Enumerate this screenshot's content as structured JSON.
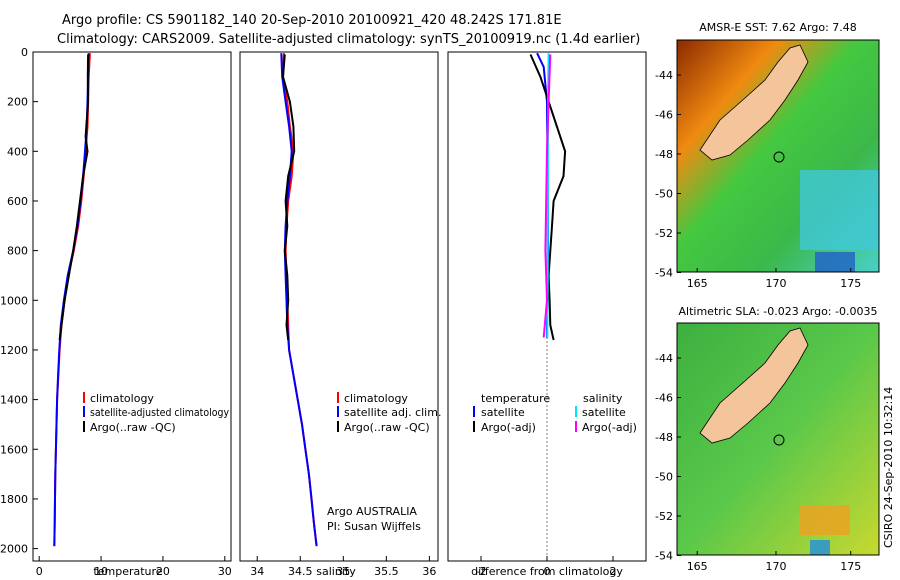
{
  "header": {
    "line1": "Argo profile: CS 5901182_140 20-Sep-2010 20100921_420 48.242S 171.81E",
    "line2": "Climatology: CARS2009. Satellite-adjusted climatology: synTS_20100919.nc (1.4d earlier)"
  },
  "side_stamp": "CSIRO 24-Sep-2010 10:32:14",
  "colors": {
    "climatology": "#ff0000",
    "satellite": "#0000ff",
    "argo": "#000000",
    "salinity_satellite": "#00e5ff",
    "salinity_argo": "#ff00ff",
    "land": "#f4c49a"
  },
  "chart_data": [
    {
      "type": "line",
      "name": "temperature",
      "xlabel": "temperature",
      "xlim": [
        -1,
        31
      ],
      "ylim": [
        0,
        2050
      ],
      "xticks": [
        0,
        10,
        20,
        30
      ],
      "yticks": [
        0,
        200,
        400,
        600,
        800,
        1000,
        1200,
        1400,
        1600,
        1800,
        2000
      ],
      "legend": [
        "climatology",
        "satellite-adjusted climatology",
        "Argo(..raw -QC)"
      ],
      "series": [
        {
          "name": "climatology",
          "color": "#ff0000",
          "points": [
            [
              8.2,
              5
            ],
            [
              8.0,
              100
            ],
            [
              7.9,
              200
            ],
            [
              7.8,
              300
            ],
            [
              7.5,
              400
            ],
            [
              7.2,
              500
            ],
            [
              6.8,
              600
            ],
            [
              6.3,
              700
            ],
            [
              5.6,
              800
            ],
            [
              4.7,
              900
            ],
            [
              4.1,
              1000
            ],
            [
              3.6,
              1100
            ],
            [
              3.3,
              1200
            ],
            [
              3.1,
              1300
            ],
            [
              2.9,
              1400
            ],
            [
              2.8,
              1500
            ],
            [
              2.7,
              1600
            ],
            [
              2.6,
              1700
            ],
            [
              2.55,
              1800
            ],
            [
              2.5,
              1900
            ],
            [
              2.45,
              1990
            ]
          ]
        },
        {
          "name": "satellite",
          "color": "#0000ff",
          "points": [
            [
              8.0,
              5
            ],
            [
              7.9,
              100
            ],
            [
              7.8,
              200
            ],
            [
              7.7,
              300
            ],
            [
              7.4,
              400
            ],
            [
              7.1,
              500
            ],
            [
              6.7,
              600
            ],
            [
              6.2,
              700
            ],
            [
              5.5,
              800
            ],
            [
              4.6,
              900
            ],
            [
              4.0,
              1000
            ],
            [
              3.5,
              1100
            ],
            [
              3.25,
              1200
            ],
            [
              3.05,
              1300
            ],
            [
              2.9,
              1400
            ],
            [
              2.8,
              1500
            ],
            [
              2.7,
              1600
            ],
            [
              2.6,
              1700
            ],
            [
              2.55,
              1800
            ],
            [
              2.5,
              1900
            ],
            [
              2.45,
              1990
            ]
          ]
        },
        {
          "name": "argo",
          "color": "#000000",
          "points": [
            [
              7.9,
              10
            ],
            [
              7.85,
              100
            ],
            [
              7.9,
              200
            ],
            [
              7.5,
              340
            ],
            [
              7.8,
              400
            ],
            [
              7.1,
              500
            ],
            [
              6.6,
              600
            ],
            [
              6.1,
              700
            ],
            [
              5.5,
              800
            ],
            [
              4.8,
              900
            ],
            [
              4.1,
              1000
            ],
            [
              3.6,
              1100
            ],
            [
              3.3,
              1160
            ]
          ]
        }
      ]
    },
    {
      "type": "line",
      "name": "salinity",
      "xlabel": "salinity",
      "xlim": [
        33.8,
        36.1
      ],
      "ylim": [
        0,
        2050
      ],
      "xticks": [
        34,
        34.5,
        35,
        35.5,
        36
      ],
      "legend": [
        "climatology",
        "satellite adj. clim.",
        "Argo(..raw -QC)"
      ],
      "annotation": [
        "Argo AUSTRALIA",
        "PI: Susan Wijffels"
      ],
      "series": [
        {
          "name": "climatology",
          "color": "#ff0000",
          "points": [
            [
              34.31,
              5
            ],
            [
              34.3,
              100
            ],
            [
              34.35,
              200
            ],
            [
              34.38,
              300
            ],
            [
              34.42,
              400
            ],
            [
              34.4,
              500
            ],
            [
              34.36,
              600
            ],
            [
              34.34,
              700
            ],
            [
              34.33,
              800
            ],
            [
              34.34,
              900
            ],
            [
              34.35,
              1000
            ],
            [
              34.36,
              1100
            ],
            [
              34.37,
              1200
            ],
            [
              34.42,
              1300
            ],
            [
              34.47,
              1400
            ],
            [
              34.52,
              1500
            ],
            [
              34.56,
              1600
            ],
            [
              34.6,
              1700
            ],
            [
              34.63,
              1800
            ],
            [
              34.66,
              1900
            ],
            [
              34.69,
              1990
            ]
          ]
        },
        {
          "name": "satellite",
          "color": "#0000ff",
          "points": [
            [
              34.28,
              5
            ],
            [
              34.29,
              100
            ],
            [
              34.33,
              200
            ],
            [
              34.37,
              300
            ],
            [
              34.4,
              400
            ],
            [
              34.38,
              500
            ],
            [
              34.35,
              600
            ],
            [
              34.33,
              700
            ],
            [
              34.32,
              800
            ],
            [
              34.33,
              900
            ],
            [
              34.34,
              1000
            ],
            [
              34.35,
              1100
            ],
            [
              34.37,
              1200
            ],
            [
              34.42,
              1300
            ],
            [
              34.47,
              1400
            ],
            [
              34.52,
              1500
            ],
            [
              34.56,
              1600
            ],
            [
              34.6,
              1700
            ],
            [
              34.63,
              1800
            ],
            [
              34.66,
              1900
            ],
            [
              34.69,
              1990
            ]
          ]
        },
        {
          "name": "argo",
          "color": "#000000",
          "points": [
            [
              34.32,
              10
            ],
            [
              34.3,
              100
            ],
            [
              34.38,
              200
            ],
            [
              34.42,
              300
            ],
            [
              34.43,
              400
            ],
            [
              34.36,
              500
            ],
            [
              34.33,
              600
            ],
            [
              34.35,
              700
            ],
            [
              34.32,
              800
            ],
            [
              34.35,
              900
            ],
            [
              34.36,
              1000
            ],
            [
              34.34,
              1100
            ],
            [
              34.36,
              1160
            ]
          ]
        }
      ]
    },
    {
      "type": "line",
      "name": "difference",
      "xlabel": "difference from climatology",
      "xlim": [
        -3,
        3
      ],
      "ylim": [
        0,
        2050
      ],
      "xticks": [
        -2,
        0,
        2
      ],
      "legend": {
        "temperature_header": "temperature",
        "salinity_header": "salinity",
        "temperature_items": [
          "satellite",
          "Argo(-adj)"
        ],
        "salinity_items": [
          "satellite",
          "Argo(-adj)"
        ]
      },
      "series": [
        {
          "name": "temp-satellite",
          "color": "#0000ff",
          "points": [
            [
              -0.3,
              5
            ],
            [
              -0.1,
              60
            ],
            [
              0.0,
              200
            ],
            [
              0.02,
              500
            ],
            [
              0.03,
              800
            ],
            [
              0.0,
              1100
            ],
            [
              0.0,
              1150
            ]
          ]
        },
        {
          "name": "temp-argo",
          "color": "#000000",
          "points": [
            [
              -0.5,
              10
            ],
            [
              -0.2,
              100
            ],
            [
              0.3,
              300
            ],
            [
              0.55,
              400
            ],
            [
              0.5,
              500
            ],
            [
              0.2,
              600
            ],
            [
              0.15,
              700
            ],
            [
              0.1,
              800
            ],
            [
              0.05,
              900
            ],
            [
              0.08,
              1000
            ],
            [
              0.1,
              1100
            ],
            [
              0.2,
              1160
            ]
          ]
        },
        {
          "name": "sal-satellite",
          "color": "#00e5ff",
          "points": [
            [
              0.05,
              5
            ],
            [
              0.04,
              100
            ],
            [
              0.03,
              300
            ],
            [
              0.02,
              600
            ],
            [
              0.02,
              900
            ],
            [
              0.01,
              1150
            ]
          ]
        },
        {
          "name": "sal-argo",
          "color": "#ff00ff",
          "points": [
            [
              0.1,
              10
            ],
            [
              0.05,
              200
            ],
            [
              0.0,
              400
            ],
            [
              -0.05,
              800
            ],
            [
              0.0,
              1000
            ],
            [
              -0.1,
              1150
            ]
          ]
        }
      ]
    },
    {
      "type": "heatmap",
      "name": "sst-map",
      "title": "AMSR-E SST: 7.62 Argo: 7.48",
      "xticks": [
        "165",
        "170",
        "175"
      ],
      "yticks": [
        "-44",
        "-46",
        "-48",
        "-50",
        "-52",
        "-54"
      ]
    },
    {
      "type": "heatmap",
      "name": "sla-map",
      "title": "Altimetric SLA: -0.023 Argo: -0.0035",
      "xticks": [
        "165",
        "170",
        "175"
      ],
      "yticks": [
        "-44",
        "-46",
        "-48",
        "-50",
        "-52",
        "-54"
      ]
    }
  ]
}
